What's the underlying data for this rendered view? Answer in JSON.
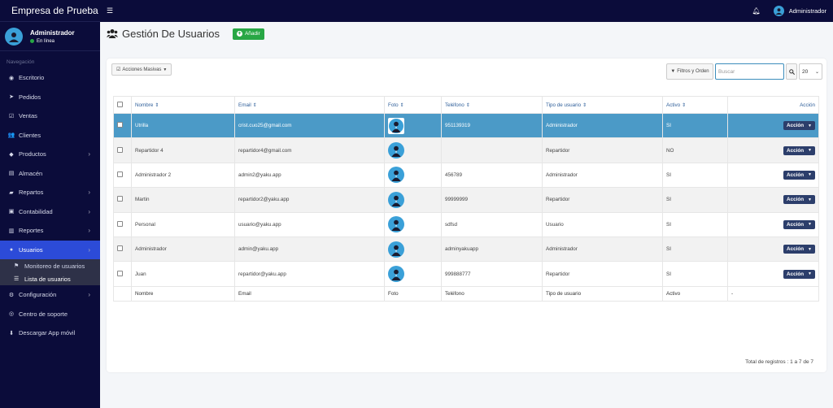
{
  "app": {
    "brand": "Empresa de Prueba"
  },
  "user": {
    "name": "Administrador",
    "status": "En línea"
  },
  "sidebar": {
    "header": "Navegación",
    "items": [
      {
        "label": "Escritorio",
        "icon": "tachometer-icon",
        "glyph": "◉"
      },
      {
        "label": "Pedidos",
        "icon": "paper-plane-icon",
        "glyph": "➤"
      },
      {
        "label": "Ventas",
        "icon": "check-square-icon",
        "glyph": "☑"
      },
      {
        "label": "Clientes",
        "icon": "users-icon",
        "glyph": "👥"
      },
      {
        "label": "Productos",
        "icon": "cube-icon",
        "glyph": "◆"
      },
      {
        "label": "Almacén",
        "icon": "file-icon",
        "glyph": "▤"
      },
      {
        "label": "Repartos",
        "icon": "truck-icon",
        "glyph": "▰"
      },
      {
        "label": "Contabilidad",
        "icon": "calculator-icon",
        "glyph": "▣"
      },
      {
        "label": "Reportes",
        "icon": "bar-chart-icon",
        "glyph": "▥"
      },
      {
        "label": "Usuarios",
        "icon": "user-icon",
        "glyph": "●"
      },
      {
        "label": "Configuración",
        "icon": "cogs-icon",
        "glyph": "⚙"
      },
      {
        "label": "Centro de soporte",
        "icon": "life-ring-icon",
        "glyph": "◎"
      },
      {
        "label": "Descargar App móvil",
        "icon": "download-icon",
        "glyph": "⬇"
      }
    ],
    "sub_items": [
      {
        "label": "Monitoreo de usuarios",
        "icon": "flag-icon",
        "glyph": "⚑"
      },
      {
        "label": "Lista de usuarios",
        "icon": "list-icon",
        "glyph": "☰"
      }
    ]
  },
  "topbar": {
    "username": "Administrador"
  },
  "page": {
    "title": "Gestión De Usuarios",
    "add_label": "Añadir"
  },
  "toolbar": {
    "mass_actions": "Acciones Masivas",
    "filters": "Filtros y Orden",
    "search_placeholder": "Buscar",
    "page_size": "20"
  },
  "table": {
    "headers": {
      "nombre": "Nombre",
      "email": "Email",
      "foto": "Foto",
      "telefono": "Teléfono",
      "tipo": "Tipo de usuario",
      "activo": "Activo",
      "accion": "Acción"
    },
    "rows": [
      {
        "nombre": "Utrilla",
        "email": "crist.cuo25@gmail.com",
        "telefono": "951139319",
        "tipo": "Administrador",
        "activo": "SI",
        "accion": "Acción"
      },
      {
        "nombre": "Repartidor 4",
        "email": "repartidor4@gmail.com",
        "telefono": "",
        "tipo": "Repartidor",
        "activo": "NO",
        "accion": "Acción"
      },
      {
        "nombre": "Administrador 2",
        "email": "admin2@yaku.app",
        "telefono": "456789",
        "tipo": "Administrador",
        "activo": "SI",
        "accion": "Acción"
      },
      {
        "nombre": "Martin",
        "email": "repartidor2@yaku.app",
        "telefono": "99999999",
        "tipo": "Repartidor",
        "activo": "SI",
        "accion": "Acción"
      },
      {
        "nombre": "Personal",
        "email": "usuario@yaku.app",
        "telefono": "sdfsd",
        "tipo": "Usuario",
        "activo": "SI",
        "accion": "Acción"
      },
      {
        "nombre": "Administrador",
        "email": "admin@yaku.app",
        "telefono": "adminyakuapp",
        "tipo": "Administrador",
        "activo": "SI",
        "accion": "Acción"
      },
      {
        "nombre": "Juan",
        "email": "repartidor@yaku.app",
        "telefono": "999888777",
        "tipo": "Repartidor",
        "activo": "SI",
        "accion": "Acción"
      }
    ],
    "footer": {
      "nombre": "Nombre",
      "email": "Email",
      "foto": "Foto",
      "telefono": "Teléfono",
      "tipo": "Tipo de usuario",
      "activo": "Activo",
      "accion": "-"
    },
    "total": "Total de registros : 1 a 7 de 7"
  },
  "colors": {
    "sidebar_bg": "#0b0c3a",
    "active_nav": "#2c4bd8",
    "selected_row": "#4b9ac7",
    "add_button": "#28a745",
    "action_button": "#2c3e6b"
  }
}
